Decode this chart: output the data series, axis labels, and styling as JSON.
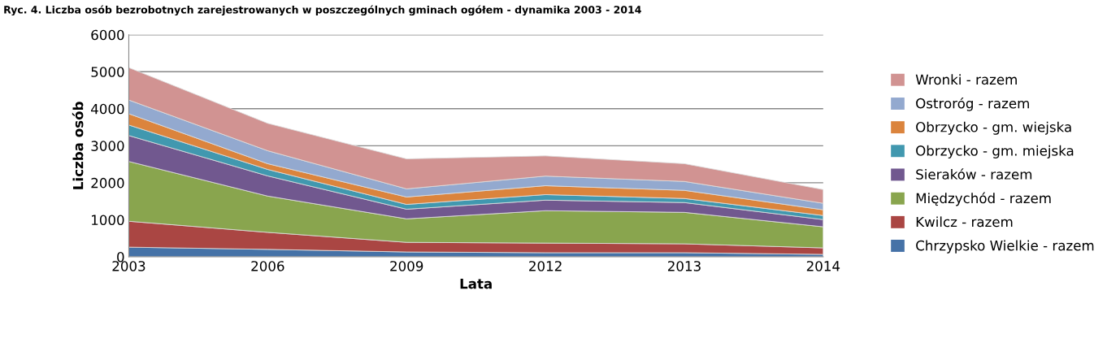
{
  "chart_data": {
    "type": "area",
    "stacked": true,
    "title": "Ryc. 4. Liczba osób bezrobotnych zarejestrowanych w poszczególnych gminach ogółem - dynamika 2003 - 2014",
    "xlabel": "Lata",
    "ylabel": "Liczba osób",
    "categories": [
      "2003",
      "2006",
      "2009",
      "2012",
      "2013",
      "2014"
    ],
    "ylim": [
      0,
      6000
    ],
    "yticks": [
      0,
      1000,
      2000,
      3000,
      4000,
      5000,
      6000
    ],
    "grid": "y",
    "legend": "right",
    "series": [
      {
        "name": "Chrzypsko Wielkie - razem",
        "color": "#4572a7",
        "values": [
          260,
          200,
          130,
          110,
          110,
          65
        ]
      },
      {
        "name": "Kwilcz - razem",
        "color": "#aa4643",
        "values": [
          700,
          460,
          260,
          260,
          240,
          175
        ]
      },
      {
        "name": "Międzychód - razem",
        "color": "#89a54e",
        "values": [
          1615,
          980,
          635,
          875,
          850,
          570
        ]
      },
      {
        "name": "Sieraków - razem",
        "color": "#71588f",
        "values": [
          700,
          545,
          260,
          285,
          265,
          195
        ]
      },
      {
        "name": "Obrzycko - gm. miejska",
        "color": "#4198af",
        "values": [
          285,
          175,
          130,
          150,
          110,
          110
        ]
      },
      {
        "name": "Obrzycko - gm. wiejska",
        "color": "#db843d",
        "values": [
          305,
          155,
          200,
          240,
          220,
          155
        ]
      },
      {
        "name": "Ostroróg - razem",
        "color": "#93a9cf",
        "values": [
          370,
          350,
          220,
          260,
          240,
          175
        ]
      },
      {
        "name": "Wronki - razem",
        "color": "#d19392",
        "values": [
          875,
          740,
          810,
          545,
          480,
          370
        ]
      }
    ]
  }
}
